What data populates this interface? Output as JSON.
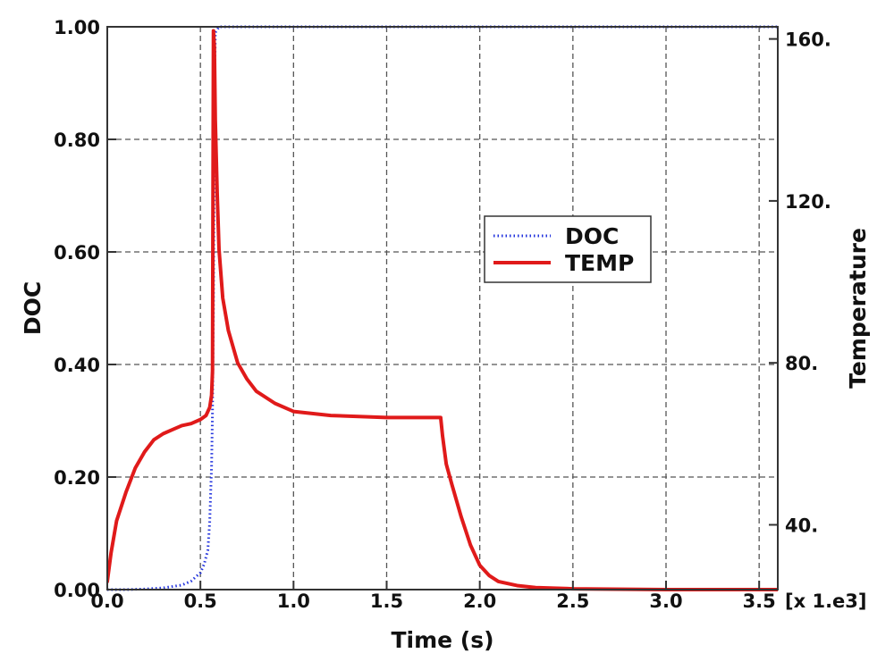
{
  "chart_data": {
    "type": "line",
    "title": "",
    "xlabel": "Time (s)",
    "x_multiplier_label": "[x 1.e3]",
    "ylabel_left": "DOC",
    "ylabel_right": "Temperature",
    "xlim": [
      0,
      3.6
    ],
    "ylim_left": [
      0,
      1.0
    ],
    "ylim_right": [
      24,
      163
    ],
    "x_ticks": [
      "0.0",
      "0.5",
      "1.0",
      "1.5",
      "2.0",
      "2.5",
      "3.0",
      "3.5"
    ],
    "x_tick_values": [
      0,
      0.5,
      1.0,
      1.5,
      2.0,
      2.5,
      3.0,
      3.5
    ],
    "left_ticks": [
      "0.00",
      "0.20",
      "0.40",
      "0.60",
      "0.80",
      "1.00"
    ],
    "left_tick_values": [
      0,
      0.2,
      0.4,
      0.6,
      0.8,
      1.0
    ],
    "right_ticks": [
      "40.",
      "80.",
      "120.",
      "160."
    ],
    "right_tick_values": [
      40,
      80,
      120,
      160
    ],
    "grid": true,
    "legend_position": "center-right",
    "series": [
      {
        "name": "DOC",
        "axis": "left",
        "color": "#2233dd",
        "style": "dotted",
        "x": [
          0,
          0.1,
          0.2,
          0.3,
          0.4,
          0.45,
          0.5,
          0.52,
          0.54,
          0.55,
          0.56,
          0.565,
          0.57,
          0.575,
          0.58,
          0.6,
          1.0,
          2.0,
          3.0,
          3.6
        ],
        "y": [
          0,
          0,
          0.001,
          0.003,
          0.008,
          0.015,
          0.03,
          0.045,
          0.07,
          0.12,
          0.22,
          0.32,
          0.5,
          0.85,
          0.99,
          1.0,
          1.0,
          1.0,
          1.0,
          1.0
        ]
      },
      {
        "name": "TEMP",
        "axis": "right",
        "color": "#e01a1a",
        "style": "solid",
        "x": [
          0,
          0.02,
          0.05,
          0.1,
          0.15,
          0.2,
          0.25,
          0.3,
          0.35,
          0.4,
          0.45,
          0.5,
          0.53,
          0.55,
          0.56,
          0.565,
          0.57,
          0.575,
          0.58,
          0.59,
          0.6,
          0.62,
          0.65,
          0.7,
          0.75,
          0.8,
          0.9,
          1.0,
          1.2,
          1.5,
          1.79,
          1.8,
          1.82,
          1.85,
          1.9,
          1.95,
          2.0,
          2.05,
          2.1,
          2.2,
          2.3,
          2.5,
          3.0,
          3.6
        ],
        "y": [
          26,
          33,
          41,
          48,
          54,
          58,
          61,
          62.5,
          63.5,
          64.5,
          65,
          66,
          67,
          69,
          72,
          78,
          162,
          158,
          140,
          122,
          108,
          96,
          88,
          80,
          76,
          73,
          70,
          68,
          67,
          66.5,
          66.5,
          62,
          55,
          50,
          42,
          35,
          30,
          27.5,
          26,
          25,
          24.5,
          24.2,
          24,
          24
        ]
      }
    ]
  }
}
